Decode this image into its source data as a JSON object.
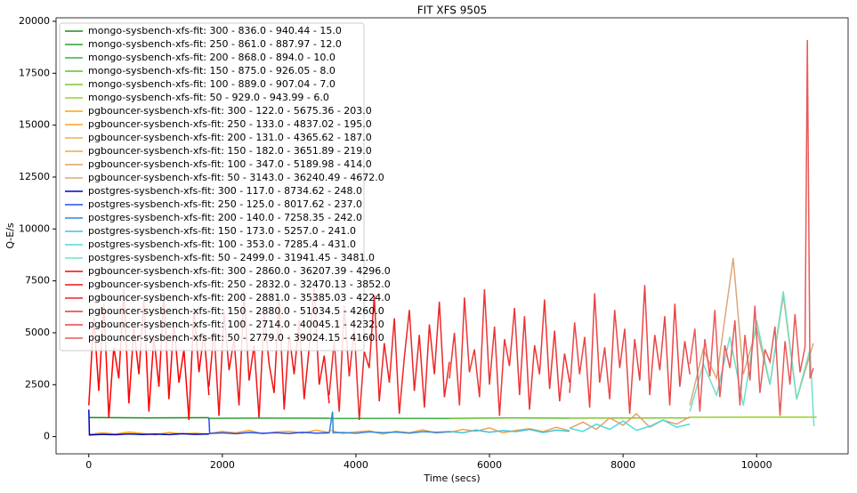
{
  "chart_data": {
    "type": "line",
    "title": "FIT XFS 9505",
    "x_label": "Time (secs)",
    "y_label": "Q-E/s",
    "xlim": [
      -490,
      11370
    ],
    "ylim": [
      -830,
      20170
    ],
    "xticks": [
      0,
      2000,
      4000,
      6000,
      8000,
      10000
    ],
    "yticks": [
      0,
      2500,
      5000,
      7500,
      10000,
      12500,
      15000,
      17500,
      20000
    ],
    "legend": "upper left",
    "series": [
      {
        "name": "mongo-sysbench-xfs-fit: 300 - 836.0 - 940.44 - 15.0",
        "color": "#1a8c1a",
        "x": [
          0,
          900,
          1800
        ],
        "values": [
          920,
          900,
          910
        ]
      },
      {
        "name": "mongo-sysbench-xfs-fit: 250 - 861.0 - 887.97 - 12.0",
        "color": "#2ca02c",
        "x": [
          1800,
          2700,
          3600
        ],
        "values": [
          880,
          890,
          885
        ]
      },
      {
        "name": "mongo-sysbench-xfs-fit: 200 - 868.0 - 894.0 - 10.0",
        "color": "#3cb043",
        "x": [
          3600,
          4500,
          5400
        ],
        "values": [
          870,
          880,
          875
        ]
      },
      {
        "name": "mongo-sysbench-xfs-fit: 150 - 875.0 - 926.05 - 8.0",
        "color": "#5cbf2a",
        "x": [
          5400,
          6300,
          7200
        ],
        "values": [
          880,
          900,
          890
        ]
      },
      {
        "name": "mongo-sysbench-xfs-fit: 100 - 889.0 - 907.04 - 7.0",
        "color": "#7cc832",
        "x": [
          7200,
          8100,
          9000
        ],
        "values": [
          890,
          895,
          900
        ]
      },
      {
        "name": "mongo-sysbench-xfs-fit: 50 - 929.0 - 943.99 - 6.0",
        "color": "#9acd32",
        "x": [
          9000,
          9900,
          10900
        ],
        "values": [
          930,
          935,
          940
        ]
      },
      {
        "name": "pgbouncer-sysbench-xfs-fit: 300 - 122.0 - 5675.36 - 203.0",
        "color": "#ffa500",
        "x": [
          0,
          200,
          400,
          600,
          800,
          1000,
          1200,
          1400,
          1600,
          1800
        ],
        "values": [
          100,
          180,
          120,
          220,
          150,
          90,
          200,
          130,
          170,
          110
        ]
      },
      {
        "name": "pgbouncer-sysbench-xfs-fit: 250 - 133.0 - 4837.02 - 195.0",
        "color": "#f5a623",
        "x": [
          1800,
          2000,
          2200,
          2400,
          2600,
          2800,
          3000,
          3200,
          3400,
          3600
        ],
        "values": [
          150,
          250,
          180,
          300,
          140,
          220,
          260,
          170,
          310,
          200
        ]
      },
      {
        "name": "pgbouncer-sysbench-xfs-fit: 200 - 131.0 - 4365.62 - 187.0",
        "color": "#f0ad4e",
        "x": [
          3600,
          3800,
          4000,
          4200,
          4400,
          4600,
          4800,
          5000,
          5200,
          5400
        ],
        "values": [
          320,
          150,
          230,
          280,
          120,
          260,
          190,
          330,
          170,
          240
        ]
      },
      {
        "name": "pgbouncer-sysbench-xfs-fit: 150 - 182.0 - 3651.89 - 219.0",
        "color": "#eea550",
        "x": [
          5400,
          5600,
          5800,
          6000,
          6200,
          6400,
          6600,
          6800,
          7000,
          7200
        ],
        "values": [
          200,
          350,
          260,
          420,
          180,
          300,
          380,
          240,
          450,
          280
        ]
      },
      {
        "name": "pgbouncer-sysbench-xfs-fit: 100 - 347.0 - 5189.98 - 414.0",
        "color": "#e3a060",
        "x": [
          7200,
          7400,
          7600,
          7800,
          8000,
          8200,
          8400,
          8600,
          8800,
          9000
        ],
        "values": [
          400,
          700,
          350,
          900,
          550,
          1100,
          450,
          800,
          600,
          950
        ]
      },
      {
        "name": "pgbouncer-sysbench-xfs-fit: 50 - 3143.0 - 36240.49 - 4672.0",
        "color": "#dba878",
        "x": [
          9000,
          9200,
          9400,
          9650,
          9800,
          10000,
          10200,
          10400,
          10600,
          10850
        ],
        "values": [
          1500,
          4200,
          2800,
          8600,
          3000,
          5200,
          2500,
          6800,
          1800,
          4500
        ]
      },
      {
        "name": "postgres-sysbench-xfs-fit: 300 - 117.0 - 8734.62 - 248.0",
        "color": "#0000cd",
        "x": [
          0,
          10,
          200,
          400,
          600,
          800,
          1000,
          1200,
          1400,
          1600,
          1800
        ],
        "values": [
          1300,
          80,
          110,
          90,
          130,
          100,
          120,
          95,
          140,
          110,
          130
        ]
      },
      {
        "name": "postgres-sysbench-xfs-fit: 250 - 125.0 - 8017.62 - 237.0",
        "color": "#1e4fff",
        "x": [
          1800,
          1810,
          2000,
          2200,
          2400,
          2600,
          2800,
          3000,
          3200,
          3400,
          3600
        ],
        "values": [
          900,
          150,
          180,
          140,
          200,
          160,
          190,
          150,
          210,
          170,
          180
        ]
      },
      {
        "name": "postgres-sysbench-xfs-fit: 200 - 140.0 - 7258.35 - 242.0",
        "color": "#2f86e0",
        "x": [
          3600,
          3650,
          3660,
          3800,
          4000,
          4200,
          4400,
          4600,
          4800,
          5000,
          5200,
          5400
        ],
        "values": [
          150,
          1200,
          180,
          200,
          160,
          230,
          190,
          220,
          170,
          240,
          210,
          230
        ]
      },
      {
        "name": "postgres-sysbench-xfs-fit: 150 - 173.0 - 5257.0 - 241.0",
        "color": "#40c0e0",
        "x": [
          5400,
          5600,
          5800,
          6000,
          6200,
          6400,
          6600,
          6800,
          7000,
          7200
        ],
        "values": [
          250,
          180,
          320,
          210,
          290,
          240,
          350,
          200,
          310,
          260
        ]
      },
      {
        "name": "postgres-sysbench-xfs-fit: 100 - 353.0 - 7285.4 - 431.0",
        "color": "#50d8e0",
        "x": [
          7200,
          7400,
          7600,
          7800,
          8000,
          8200,
          8400,
          8600,
          8800,
          9000
        ],
        "values": [
          400,
          250,
          600,
          350,
          750,
          300,
          500,
          800,
          450,
          600
        ]
      },
      {
        "name": "postgres-sysbench-xfs-fit: 50 - 2499.0 - 31941.45 - 3481.0",
        "color": "#6fe0c8",
        "x": [
          9000,
          9200,
          9400,
          9600,
          9800,
          10000,
          10200,
          10400,
          10600,
          10800,
          10860
        ],
        "values": [
          1200,
          3500,
          2000,
          4800,
          1500,
          5600,
          2500,
          7000,
          1800,
          4200,
          500
        ]
      },
      {
        "name": "pgbouncer-sysbench-xfs-fit: 300 - 2860.0 - 36207.39 - 4296.0",
        "color": "#ff0000",
        "x": [
          0,
          75,
          150,
          225,
          300,
          375,
          450,
          525,
          600,
          675,
          750,
          825,
          900,
          975,
          1050,
          1125,
          1200,
          1275,
          1350,
          1425,
          1500,
          1575,
          1650,
          1725,
          1800
        ],
        "values": [
          1500,
          5800,
          2200,
          6400,
          900,
          4300,
          2800,
          7100,
          1600,
          5200,
          3000,
          6600,
          1200,
          4800,
          2400,
          6900,
          1800,
          5500,
          2600,
          4200,
          800,
          6200,
          3100,
          5000,
          2000
        ]
      },
      {
        "name": "pgbouncer-sysbench-xfs-fit: 250 - 2832.0 - 32470.13 - 3852.0",
        "color": "#f21414",
        "x": [
          1800,
          1875,
          1950,
          2025,
          2100,
          2175,
          2250,
          2325,
          2400,
          2475,
          2550,
          2625,
          2700,
          2775,
          2850,
          2925,
          3000,
          3075,
          3150,
          3225,
          3300,
          3375,
          3450,
          3525,
          3600
        ],
        "values": [
          2400,
          5100,
          1000,
          6000,
          3200,
          4700,
          1500,
          7000,
          2700,
          4400,
          900,
          5900,
          3500,
          2100,
          6600,
          1300,
          4900,
          3000,
          5600,
          1800,
          4300,
          7200,
          2500,
          3900,
          1600
        ]
      },
      {
        "name": "pgbouncer-sysbench-xfs-fit: 200 - 2881.0 - 35385.03 - 4224.0",
        "color": "#ee2626",
        "x": [
          3600,
          3675,
          3750,
          3825,
          3900,
          3975,
          4050,
          4125,
          4200,
          4275,
          4350,
          4425,
          4500,
          4575,
          4650,
          4725,
          4800,
          4875,
          4950,
          5025,
          5100,
          5175,
          5250,
          5325,
          5400
        ],
        "values": [
          2000,
          4600,
          1200,
          6300,
          2900,
          5200,
          800,
          4100,
          3300,
          6800,
          1700,
          4500,
          2600,
          5700,
          1100,
          3800,
          6100,
          2200,
          4900,
          1400,
          5400,
          3000,
          6500,
          1900,
          3600
        ]
      },
      {
        "name": "pgbouncer-sysbench-xfs-fit: 150 - 2880.0 - 51034.5 - 4260.0",
        "color": "#ec3636",
        "x": [
          5400,
          5475,
          5550,
          5625,
          5700,
          5775,
          5850,
          5925,
          6000,
          6075,
          6150,
          6225,
          6300,
          6375,
          6450,
          6525,
          6600,
          6675,
          6750,
          6825,
          6900,
          6975,
          7050,
          7125,
          7200
        ],
        "values": [
          2800,
          5000,
          1500,
          6700,
          3100,
          4200,
          1900,
          7100,
          2500,
          5300,
          1000,
          4700,
          3400,
          6200,
          2000,
          5800,
          1300,
          4400,
          3000,
          6600,
          2300,
          5100,
          1700,
          4000,
          2600
        ]
      },
      {
        "name": "pgbouncer-sysbench-xfs-fit: 100 - 2714.0 - 40045.1 - 4232.0",
        "color": "#ea4545",
        "x": [
          7200,
          7275,
          7350,
          7425,
          7500,
          7575,
          7650,
          7725,
          7800,
          7875,
          7950,
          8025,
          8100,
          8175,
          8250,
          8325,
          8400,
          8475,
          8550,
          8625,
          8700,
          8775,
          8850,
          8925,
          9000
        ],
        "values": [
          2100,
          5500,
          3000,
          4800,
          1400,
          6900,
          2600,
          4300,
          1800,
          6100,
          3300,
          5200,
          1100,
          4700,
          2700,
          7300,
          2000,
          4900,
          3200,
          5800,
          1500,
          6400,
          2400,
          4600,
          3000
        ]
      },
      {
        "name": "pgbouncer-sysbench-xfs-fit: 50 - 2779.0 - 39024.15 - 4160.0",
        "color": "#e85a5a",
        "x": [
          9000,
          9075,
          9150,
          9225,
          9300,
          9375,
          9450,
          9525,
          9600,
          9675,
          9750,
          9825,
          9900,
          9975,
          10050,
          10125,
          10200,
          10275,
          10350,
          10425,
          10500,
          10575,
          10650,
          10725,
          10760,
          10800,
          10850
        ],
        "values": [
          3500,
          5200,
          1200,
          4700,
          2900,
          6100,
          1900,
          4400,
          3300,
          5600,
          1500,
          4900,
          2700,
          6300,
          2100,
          4200,
          3600,
          5300,
          1000,
          4600,
          2500,
          5900,
          3100,
          4300,
          19100,
          2800,
          3300
        ]
      }
    ]
  }
}
